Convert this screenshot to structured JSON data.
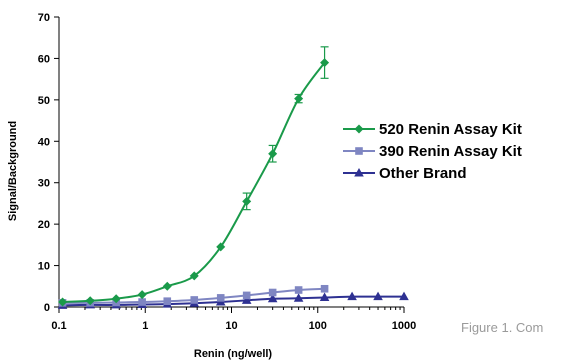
{
  "caption": "Figure 1. Com",
  "chart_data": {
    "type": "line",
    "xlabel": "Renin (ng/well)",
    "ylabel": "Signal/Background",
    "xscale": "log",
    "xlim": [
      0.1,
      1000
    ],
    "ylim": [
      0,
      70
    ],
    "yticks": [
      "0",
      "10",
      "20",
      "30",
      "40",
      "50",
      "60",
      "70"
    ],
    "xticks": [
      "0.1",
      "1",
      "10",
      "100",
      "1000"
    ],
    "grid": false,
    "legend_position": "right",
    "series": [
      {
        "name": "520 Renin Assay Kit",
        "color": "#1a9a4a",
        "marker": "diamond",
        "x": [
          0.11,
          0.23,
          0.46,
          0.92,
          1.8,
          3.7,
          7.5,
          15,
          30,
          60,
          120
        ],
        "y": [
          1.2,
          1.5,
          2.0,
          3.0,
          5.0,
          7.5,
          14.5,
          25.5,
          37.0,
          50.3,
          59.0
        ],
        "error": [
          0,
          0,
          0,
          0,
          0,
          0,
          0,
          2.0,
          2.0,
          1.0,
          3.8
        ]
      },
      {
        "name": "390 Renin Assay Kit",
        "color": "#7f86c2",
        "marker": "square",
        "x": [
          0.11,
          0.23,
          0.46,
          0.92,
          1.8,
          3.7,
          7.5,
          15,
          30,
          60,
          120
        ],
        "y": [
          1.0,
          1.0,
          1.1,
          1.2,
          1.4,
          1.7,
          2.2,
          2.8,
          3.5,
          4.1,
          4.4
        ],
        "error": [
          0,
          0,
          0,
          0,
          0,
          0,
          0,
          0,
          0,
          0,
          0
        ]
      },
      {
        "name": "Other Brand",
        "color": "#2e3192",
        "marker": "triangle",
        "x": [
          0.11,
          0.23,
          0.46,
          0.92,
          1.8,
          3.7,
          7.5,
          15,
          30,
          60,
          120,
          250,
          500,
          1000
        ],
        "y": [
          0.4,
          0.5,
          0.5,
          0.6,
          0.7,
          0.9,
          1.2,
          1.6,
          2.0,
          2.1,
          2.3,
          2.5,
          2.5,
          2.5
        ],
        "error": [
          0,
          0,
          0,
          0,
          0,
          0,
          0,
          0,
          0,
          0,
          0,
          0,
          0,
          0
        ]
      }
    ]
  }
}
